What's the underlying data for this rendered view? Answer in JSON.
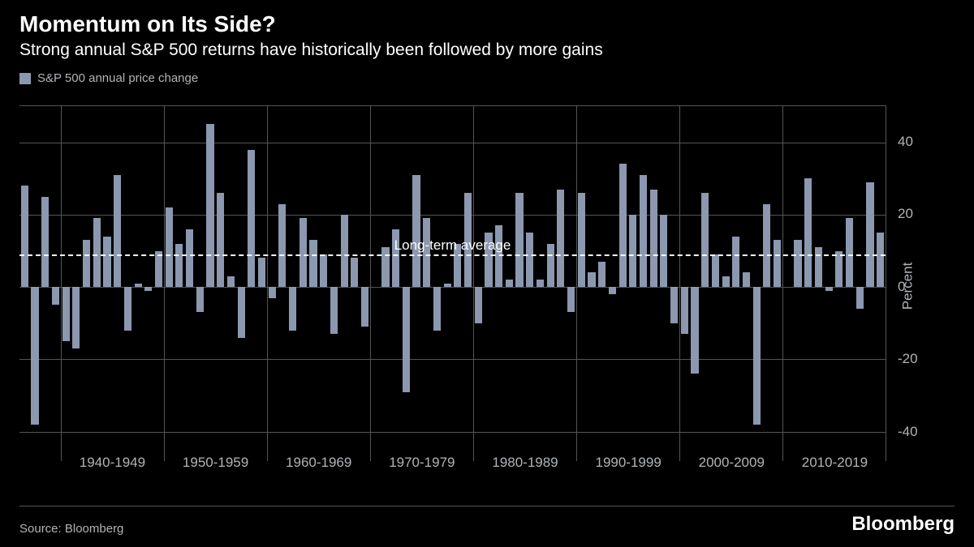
{
  "title": "Momentum on Its Side?",
  "subtitle": "Strong annual S&P 500 returns have historically been followed by more gains",
  "legend": {
    "label": "S&P 500 annual price change",
    "swatch_color": "#8b98b0"
  },
  "chart": {
    "type": "bar",
    "bar_color": "#8b98b0",
    "background_color": "#000000",
    "grid_color": "#555555",
    "axis_label_color": "#b0b4b8",
    "axis_label_fontsize": 17,
    "ylim": [
      -45,
      50
    ],
    "ytick_values": [
      -40,
      -20,
      0,
      20,
      40
    ],
    "y_axis_title": "Percent",
    "long_term_average": {
      "value": 9,
      "label": "Long-term average",
      "line_color": "#ffffff"
    },
    "decades": [
      {
        "label": "",
        "start_year": 1936
      },
      {
        "label": "1940-1949",
        "start_year": 1940
      },
      {
        "label": "1950-1959",
        "start_year": 1950
      },
      {
        "label": "1960-1969",
        "start_year": 1960
      },
      {
        "label": "1970-1979",
        "start_year": 1970
      },
      {
        "label": "1980-1989",
        "start_year": 1980
      },
      {
        "label": "1990-1999",
        "start_year": 1990
      },
      {
        "label": "2000-2009",
        "start_year": 2000
      },
      {
        "label": "2010-2019",
        "start_year": 2010
      },
      {
        "label": "",
        "start_year": 2020
      }
    ],
    "values": [
      28,
      -38,
      25,
      -5,
      -15,
      -17,
      13,
      19,
      14,
      31,
      -12,
      1,
      -1,
      10,
      22,
      12,
      16,
      -7,
      45,
      26,
      3,
      -14,
      38,
      8,
      -3,
      23,
      -12,
      19,
      13,
      9,
      -13,
      20,
      8,
      -11,
      0,
      11,
      16,
      -29,
      31,
      19,
      -12,
      1,
      12,
      26,
      -10,
      15,
      17,
      2,
      26,
      15,
      2,
      12,
      27,
      -7,
      26,
      4,
      7,
      -2,
      34,
      20,
      31,
      27,
      20,
      -10,
      -13,
      -24,
      26,
      9,
      3,
      14,
      4,
      -38,
      23,
      13,
      0,
      13,
      30,
      11,
      -1,
      10,
      19,
      -6,
      29,
      15
    ],
    "bar_gap_ratio": 0.28
  },
  "source": "Source: Bloomberg",
  "brand": "Bloomberg"
}
